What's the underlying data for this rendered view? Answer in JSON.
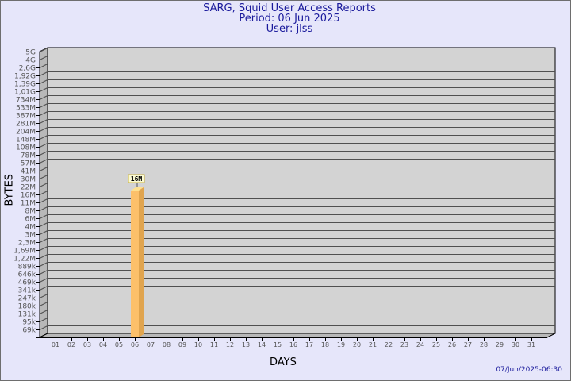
{
  "title_lines": [
    "SARG, Squid User Access Reports",
    "Period: 06 Jun 2025",
    "User: jlss"
  ],
  "timestamp": "07/Jun/2025-06:30",
  "chart_data": {
    "type": "bar",
    "title": "SARG, Squid User Access Reports",
    "xlabel": "DAYS",
    "ylabel": "BYTES",
    "yscale": "log",
    "y_ticks": [
      "5G",
      "4G",
      "2,6G",
      "1,92G",
      "1,39G",
      "1,01G",
      "734M",
      "533M",
      "387M",
      "281M",
      "204M",
      "148M",
      "108M",
      "78M",
      "57M",
      "41M",
      "30M",
      "22M",
      "16M",
      "11M",
      "8M",
      "6M",
      "4M",
      "3M",
      "2,3M",
      "1,69M",
      "1,22M",
      "889k",
      "646k",
      "469k",
      "341k",
      "247k",
      "180k",
      "131k",
      "95k",
      "69k"
    ],
    "categories": [
      "01",
      "02",
      "03",
      "04",
      "05",
      "06",
      "07",
      "08",
      "09",
      "10",
      "11",
      "12",
      "13",
      "14",
      "15",
      "16",
      "17",
      "18",
      "19",
      "20",
      "21",
      "22",
      "23",
      "24",
      "25",
      "26",
      "27",
      "28",
      "29",
      "30",
      "31"
    ],
    "bars": [
      {
        "day": "06",
        "value": "16M",
        "label": "16M"
      }
    ],
    "grid": true,
    "colors": {
      "bar_front": "#fcc06a",
      "bar_side": "#e0a44e",
      "bar_top": "#fde08f",
      "panel": "#d3d3d3",
      "grid": "#505050",
      "title": "#1a1a9c"
    }
  }
}
